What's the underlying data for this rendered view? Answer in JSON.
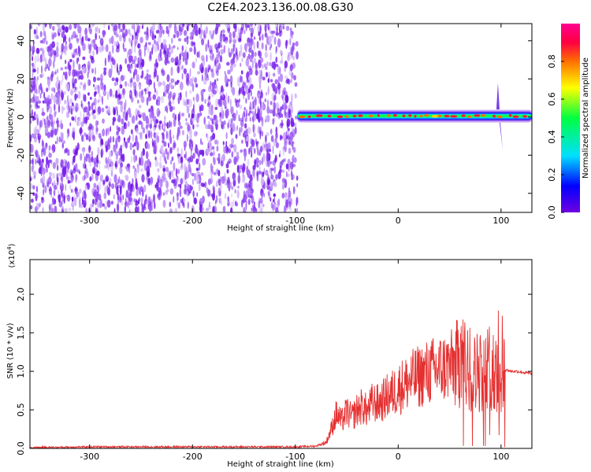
{
  "figure": {
    "title": "C2E4.2023.136.00.08.G30"
  },
  "chart_data": [
    {
      "type": "heatmap",
      "xlabel": "Height of straight line (km)",
      "ylabel": "Frequency (Hz)",
      "xlim": [
        -358,
        130
      ],
      "ylim": [
        -50,
        49
      ],
      "x_ticks": [
        -300,
        -200,
        -100,
        0,
        100
      ],
      "y_ticks": [
        -40,
        -20,
        0,
        20,
        40
      ],
      "noise_region_x": [
        -358,
        -98
      ],
      "signal_band": {
        "x_range": [
          -98,
          130
        ],
        "center_freq_hz": 0.5,
        "width_hz": 4
      },
      "colorbar": {
        "label": "Normalized spectral amplitude",
        "range": [
          0,
          1
        ],
        "ticks": [
          "0.0",
          "0.2",
          "0.4",
          "0.6",
          "0.8"
        ],
        "colors": [
          "#7000e0",
          "#0000ff",
          "#00e0ff",
          "#00ff40",
          "#ffff00",
          "#ff7000",
          "#ff0040",
          "#ff0090"
        ]
      }
    },
    {
      "type": "line",
      "xlabel": "Height of straight line (km)",
      "ylabel": "SNR (10 * v/v)",
      "y_multiplier": "(x10^4)",
      "y_multiplier_base": "(x10",
      "y_multiplier_exp": "4",
      "y_multiplier_close": ")",
      "xlim": [
        -358,
        130
      ],
      "ylim": [
        0,
        2.45
      ],
      "x_ticks": [
        -300,
        -200,
        -100,
        0,
        100
      ],
      "y_ticks": [
        0.0,
        0.5,
        1.0,
        1.5,
        2.0
      ],
      "series": [
        {
          "color": "#e53030",
          "points": [
            [
              -358,
              0.01
            ],
            [
              -300,
              0.02
            ],
            [
              -200,
              0.02
            ],
            [
              -100,
              0.02
            ],
            [
              -80,
              0.03
            ],
            [
              -70,
              0.08
            ],
            [
              -65,
              0.25
            ],
            [
              -60,
              0.45
            ],
            [
              -55,
              0.35
            ],
            [
              -50,
              0.48
            ],
            [
              -45,
              0.4
            ],
            [
              -40,
              0.5
            ],
            [
              -35,
              0.55
            ],
            [
              -30,
              0.48
            ],
            [
              -25,
              0.6
            ],
            [
              -20,
              0.58
            ],
            [
              -15,
              0.62
            ],
            [
              -10,
              0.68
            ],
            [
              -5,
              0.72
            ],
            [
              0,
              0.78
            ],
            [
              5,
              0.82
            ],
            [
              10,
              0.86
            ],
            [
              15,
              0.9
            ],
            [
              20,
              0.93
            ],
            [
              25,
              0.96
            ],
            [
              30,
              0.99
            ],
            [
              35,
              1.01
            ],
            [
              40,
              1.03
            ],
            [
              45,
              1.05
            ],
            [
              50,
              1.07
            ],
            [
              55,
              1.08
            ],
            [
              60,
              1.1
            ],
            [
              65,
              1.08
            ],
            [
              70,
              1.02
            ],
            [
              75,
              0.98
            ],
            [
              80,
              1.03
            ],
            [
              85,
              0.97
            ],
            [
              90,
              1.1
            ],
            [
              95,
              0.95
            ],
            [
              100,
              1.0
            ],
            [
              105,
              1.02
            ],
            [
              110,
              1.0
            ],
            [
              115,
              1.0
            ],
            [
              120,
              0.99
            ],
            [
              125,
              0.98
            ],
            [
              130,
              0.97
            ]
          ]
        }
      ]
    }
  ]
}
